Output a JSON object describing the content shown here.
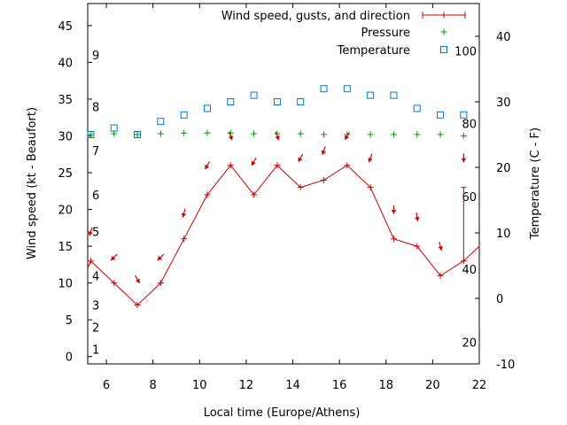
{
  "chart_data": {
    "type": "line",
    "xlabel": "Local time (Europe/Athens)",
    "ylabel_left": "Wind speed (kt - Beaufort)",
    "ylabel_right": "Temperature (C - F)",
    "x_range": [
      5.2,
      22
    ],
    "y_left_range": [
      -1,
      48
    ],
    "y_right_range": [
      -10,
      45
    ],
    "x_ticks": [
      6,
      8,
      10,
      12,
      14,
      16,
      18,
      20,
      22
    ],
    "y_left_ticks": [
      0,
      5,
      10,
      15,
      20,
      25,
      30,
      35,
      40,
      45
    ],
    "y_right_ticks": [
      -10,
      0,
      10,
      20,
      30,
      40
    ],
    "beaufort_labels": [
      {
        "label": "1",
        "kt": 1
      },
      {
        "label": "2",
        "kt": 4
      },
      {
        "label": "3",
        "kt": 7
      },
      {
        "label": "4",
        "kt": 11
      },
      {
        "label": "5",
        "kt": 17
      },
      {
        "label": "6",
        "kt": 22
      },
      {
        "label": "7",
        "kt": 28
      },
      {
        "label": "8",
        "kt": 34
      },
      {
        "label": "9",
        "kt": 41
      }
    ],
    "fahrenheit_labels": [
      {
        "label": "20",
        "c": -6.67
      },
      {
        "label": "40",
        "c": 4.44
      },
      {
        "label": "60",
        "c": 15.56
      },
      {
        "label": "80",
        "c": 26.67
      },
      {
        "label": "100",
        "c": 37.78
      }
    ],
    "legend": [
      {
        "label": "Wind speed, gusts, and direction",
        "color": "#cc0000"
      },
      {
        "label": "Pressure",
        "color": "#009900"
      },
      {
        "label": "Temperature",
        "color": "#0077cc"
      }
    ],
    "legend_position": "top-right",
    "series": [
      {
        "name": "Wind speed, gusts, and direction",
        "color": "#cc0000",
        "x": [
          5.33,
          6.33,
          7.33,
          8.33,
          9.33,
          10.33,
          11.33,
          12.33,
          13.33,
          14.33,
          15.33,
          16.33,
          17.33,
          18.33,
          19.33,
          20.33,
          21.33
        ],
        "values": [
          13,
          10,
          7,
          10,
          16,
          22,
          26,
          22,
          26,
          23,
          24,
          26,
          23,
          16,
          15,
          11,
          13
        ],
        "gust_high": [
          null,
          null,
          null,
          null,
          null,
          null,
          null,
          null,
          null,
          null,
          null,
          null,
          null,
          null,
          null,
          null,
          23
        ],
        "right_edge_value": 15
      },
      {
        "name": "Pressure",
        "color": "#009900",
        "x": [
          5.33,
          6.33,
          7.33,
          8.33,
          9.33,
          10.33,
          11.33,
          12.33,
          13.33,
          14.33,
          15.33,
          16.33,
          17.33,
          18.33,
          19.33,
          20.33,
          21.33
        ],
        "values": [
          30.2,
          30.3,
          30.2,
          30.3,
          30.4,
          30.4,
          30.4,
          30.3,
          30.3,
          30.3,
          30.2,
          30.2,
          30.2,
          30.2,
          30.2,
          30.2,
          30.0
        ]
      },
      {
        "name": "Temperature",
        "color": "#0077cc",
        "x": [
          5.33,
          6.33,
          7.33,
          8.33,
          9.33,
          10.33,
          11.33,
          12.33,
          13.33,
          14.33,
          15.33,
          16.33,
          17.33,
          18.33,
          19.33,
          20.33,
          21.33
        ],
        "values": [
          25,
          26,
          25,
          27,
          28,
          29,
          30,
          31,
          30,
          30,
          32,
          32,
          31,
          31,
          29,
          28,
          28
        ]
      }
    ],
    "wind_arrows": {
      "x": [
        5.33,
        6.33,
        7.33,
        8.33,
        9.33,
        10.33,
        11.33,
        12.33,
        13.33,
        14.33,
        15.33,
        16.33,
        17.33,
        18.33,
        19.33,
        20.33,
        21.33
      ],
      "kt": [
        17,
        13.5,
        10.5,
        13.5,
        19.5,
        26,
        30,
        26.5,
        30,
        27,
        28,
        30,
        27,
        20,
        19,
        15,
        27
      ],
      "toward_deg": [
        200,
        225,
        150,
        225,
        195,
        210,
        160,
        210,
        160,
        210,
        200,
        210,
        200,
        180,
        170,
        165,
        180
      ]
    }
  }
}
